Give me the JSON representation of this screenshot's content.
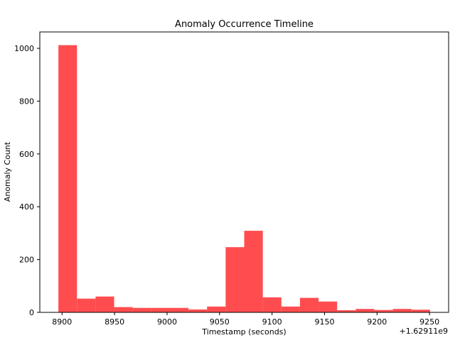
{
  "chart_data": {
    "type": "bar",
    "title": "Anomaly Occurrence Timeline",
    "xlabel": "Timestamp (seconds)",
    "ylabel": "Anomaly Count",
    "x_offset_label": "+1.62911e9",
    "color": "#ff4d4f",
    "bin_edges": [
      8896.5,
      8914.2,
      8931.9,
      8949.6,
      8967.3,
      8985.0,
      9002.7,
      9020.4,
      9038.1,
      9055.8,
      9073.5,
      9091.2,
      9108.9,
      9126.6,
      9144.3,
      9162.0,
      9179.7,
      9197.4,
      9215.1,
      9232.8,
      9250.5
    ],
    "values": [
      1012,
      52,
      60,
      20,
      17,
      17,
      17,
      11,
      22,
      247,
      309,
      57,
      22,
      55,
      41,
      8,
      13,
      9,
      13,
      10
    ],
    "xlim": [
      8878.8,
      9268.2
    ],
    "ylim": [
      0,
      1062
    ],
    "x_ticks": [
      8900,
      8950,
      9000,
      9050,
      9100,
      9150,
      9200,
      9250
    ],
    "x_tick_labels": [
      "8900",
      "8950",
      "9000",
      "9050",
      "9100",
      "9150",
      "9200",
      "9250"
    ],
    "y_ticks": [
      0,
      200,
      400,
      600,
      800,
      1000
    ],
    "y_tick_labels": [
      "0",
      "200",
      "400",
      "600",
      "800",
      "1000"
    ],
    "grid": false,
    "legend": "none"
  }
}
